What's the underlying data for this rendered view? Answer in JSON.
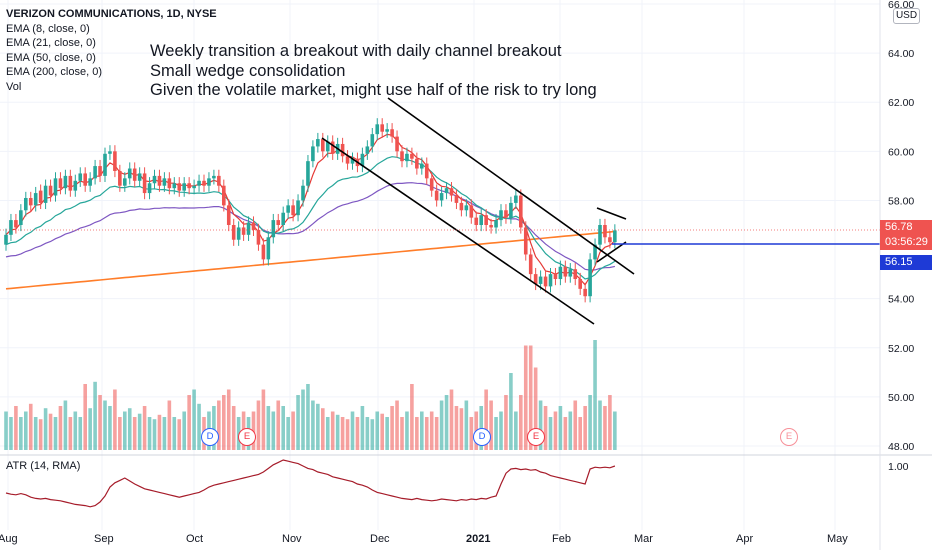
{
  "legend": {
    "title": "VERIZON COMMUNICATIONS, 1D, NYSE",
    "lines": [
      "EMA (8, close, 0)",
      "EMA (21, close, 0)",
      "EMA (50, close, 0)",
      "EMA (200, close, 0)",
      "Vol"
    ]
  },
  "annotation": {
    "lines": [
      "Weekly transition a breakout with daily channel breakout",
      "Small wedge consolidation",
      "Given the volatile market, might use half of the risk to try long"
    ]
  },
  "atr_label": "ATR (14, RMA)",
  "currency": "USD",
  "price_axis": {
    "ticks": [
      "66.00",
      "64.00",
      "62.00",
      "60.00",
      "58.00",
      "54.00",
      "52.00",
      "50.00",
      "48.00"
    ],
    "tick_values": [
      66,
      64,
      62,
      60,
      58,
      54,
      52,
      50,
      48
    ]
  },
  "atr_axis": {
    "ticks": [
      "1.00"
    ],
    "tick_values": [
      1.0
    ]
  },
  "tags": {
    "last_price": "56.78",
    "countdown": "03:56:29",
    "line_price": "56.15"
  },
  "colors": {
    "up": "#26a69a",
    "down": "#ef5350",
    "ema8": "#e53935",
    "ema21": "#26a69a",
    "ema50": "#7e57c2",
    "ema200": "#ff7d29",
    "atr": "#a61c2a",
    "hline": "#1e3ad6"
  },
  "time_axis": {
    "labels": [
      "Aug",
      "Sep",
      "Oct",
      "Nov",
      "Dec",
      "2021",
      "Feb",
      "Mar",
      "Apr",
      "May"
    ]
  },
  "earnings_markers": [
    "D",
    "E",
    "D",
    "E",
    "E"
  ],
  "chart_data": {
    "type": "candlestick",
    "title": "VERIZON COMMUNICATIONS, 1D, NYSE",
    "ylim": [
      47.8,
      66
    ],
    "x_ticks": [
      "Aug",
      "Sep",
      "Oct",
      "Nov",
      "Dec",
      "2021",
      "Feb",
      "Mar",
      "Apr",
      "May"
    ],
    "close": [
      56.6,
      57.2,
      56.9,
      57.6,
      58.1,
      57.8,
      58.3,
      57.9,
      58.6,
      58.2,
      58.9,
      58.5,
      59.0,
      58.4,
      58.8,
      59.1,
      58.6,
      58.9,
      59.4,
      59.0,
      59.9,
      60.0,
      59.2,
      58.6,
      58.9,
      59.3,
      58.8,
      59.1,
      58.3,
      58.7,
      59.0,
      58.6,
      58.9,
      58.5,
      58.7,
      58.4,
      58.7,
      58.5,
      58.6,
      58.8,
      58.6,
      58.9,
      59.0,
      58.6,
      57.8,
      57.0,
      56.4,
      56.9,
      56.6,
      57.1,
      56.8,
      56.2,
      55.6,
      56.5,
      57.2,
      57.0,
      57.5,
      57.8,
      57.4,
      58.0,
      58.6,
      59.6,
      60.2,
      60.5,
      60.0,
      60.4,
      59.9,
      60.3,
      59.8,
      59.5,
      59.7,
      59.4,
      59.9,
      60.2,
      60.7,
      61.1,
      60.8,
      60.9,
      60.6,
      60.0,
      59.6,
      59.9,
      59.7,
      59.3,
      59.5,
      58.9,
      58.4,
      58.0,
      58.3,
      58.5,
      58.2,
      57.9,
      57.6,
      57.8,
      57.3,
      57.0,
      57.4,
      57.0,
      56.9,
      57.2,
      57.6,
      57.3,
      57.9,
      58.2,
      56.9,
      55.8,
      55.0,
      54.6,
      54.9,
      54.5,
      55.0,
      54.8,
      55.3,
      54.9,
      55.2,
      54.8,
      54.4,
      54.1,
      55.6,
      56.2,
      57.0,
      56.5,
      56.3,
      56.78
    ],
    "open": [
      56.2,
      56.6,
      57.2,
      57.0,
      57.6,
      58.1,
      57.8,
      58.4,
      57.9,
      58.6,
      58.2,
      58.9,
      58.5,
      59.0,
      58.4,
      58.8,
      59.1,
      58.6,
      58.9,
      59.4,
      59.0,
      59.9,
      60.0,
      59.2,
      58.6,
      58.9,
      59.3,
      58.8,
      59.1,
      58.3,
      58.7,
      59.0,
      58.6,
      58.9,
      58.5,
      58.7,
      58.4,
      58.7,
      58.5,
      58.6,
      58.8,
      58.6,
      58.9,
      59.0,
      58.6,
      57.8,
      57.0,
      56.4,
      56.9,
      56.6,
      57.1,
      56.8,
      56.2,
      55.6,
      56.5,
      57.2,
      57.0,
      57.5,
      57.8,
      57.4,
      58.0,
      58.6,
      59.6,
      60.2,
      60.5,
      60.0,
      60.4,
      59.9,
      60.3,
      59.8,
      59.5,
      59.7,
      59.4,
      59.9,
      60.2,
      60.7,
      61.1,
      60.8,
      60.9,
      60.6,
      60.0,
      59.6,
      59.9,
      59.7,
      59.3,
      59.5,
      58.9,
      58.4,
      58.0,
      58.3,
      58.5,
      58.2,
      57.9,
      57.6,
      57.8,
      57.3,
      57.0,
      57.4,
      57.0,
      56.9,
      57.2,
      57.6,
      57.3,
      57.9,
      58.2,
      56.9,
      55.8,
      55.0,
      54.6,
      54.9,
      54.5,
      55.0,
      54.8,
      55.3,
      54.9,
      55.2,
      54.8,
      54.4,
      54.1,
      55.6,
      56.2,
      57.0,
      56.5,
      56.3
    ],
    "volume_relative": [
      0.35,
      0.3,
      0.4,
      0.3,
      0.35,
      0.42,
      0.3,
      0.28,
      0.38,
      0.33,
      0.3,
      0.4,
      0.45,
      0.3,
      0.35,
      0.3,
      0.6,
      0.38,
      0.62,
      0.5,
      0.45,
      0.4,
      0.55,
      0.3,
      0.35,
      0.38,
      0.3,
      0.33,
      0.4,
      0.3,
      0.28,
      0.32,
      0.3,
      0.45,
      0.3,
      0.28,
      0.35,
      0.5,
      0.55,
      0.42,
      0.3,
      0.35,
      0.4,
      0.45,
      0.5,
      0.55,
      0.4,
      0.3,
      0.35,
      0.3,
      0.35,
      0.45,
      0.55,
      0.4,
      0.35,
      0.45,
      0.4,
      0.3,
      0.35,
      0.5,
      0.55,
      0.6,
      0.45,
      0.42,
      0.38,
      0.3,
      0.35,
      0.32,
      0.3,
      0.28,
      0.35,
      0.3,
      0.4,
      0.3,
      0.28,
      0.35,
      0.33,
      0.3,
      0.4,
      0.45,
      0.3,
      0.35,
      0.6,
      0.3,
      0.35,
      0.3,
      0.35,
      0.3,
      0.45,
      0.5,
      0.55,
      0.4,
      0.38,
      0.45,
      0.3,
      0.35,
      0.4,
      0.55,
      0.45,
      0.3,
      0.35,
      0.5,
      0.7,
      0.35,
      0.5,
      0.95,
      0.95,
      0.75,
      0.45,
      0.4,
      0.3,
      0.35,
      0.4,
      0.3,
      0.35,
      0.45,
      0.3,
      0.4,
      0.5,
      1.0,
      0.45,
      0.4,
      0.5,
      0.35
    ],
    "atr_relative": [
      0.45,
      0.43,
      0.42,
      0.44,
      0.42,
      0.38,
      0.36,
      0.35,
      0.36,
      0.34,
      0.33,
      0.32,
      0.3,
      0.28,
      0.26,
      0.25,
      0.24,
      0.22,
      0.24,
      0.3,
      0.4,
      0.55,
      0.62,
      0.66,
      0.7,
      0.65,
      0.6,
      0.56,
      0.52,
      0.5,
      0.48,
      0.46,
      0.44,
      0.42,
      0.4,
      0.38,
      0.4,
      0.42,
      0.44,
      0.46,
      0.5,
      0.55,
      0.58,
      0.6,
      0.62,
      0.64,
      0.66,
      0.68,
      0.7,
      0.72,
      0.74,
      0.76,
      0.8,
      0.86,
      0.92,
      0.96,
      1.0,
      0.98,
      0.96,
      0.94,
      0.9,
      0.86,
      0.84,
      0.8,
      0.78,
      0.76,
      0.72,
      0.7,
      0.68,
      0.66,
      0.64,
      0.6,
      0.58,
      0.55,
      0.5,
      0.46,
      0.44,
      0.42,
      0.4,
      0.38,
      0.36,
      0.35,
      0.34,
      0.36,
      0.34,
      0.33,
      0.32,
      0.33,
      0.35,
      0.34,
      0.33,
      0.32,
      0.34,
      0.33,
      0.35,
      0.34,
      0.36,
      0.35,
      0.38,
      0.4,
      0.6,
      0.78,
      0.85,
      0.86,
      0.84,
      0.85,
      0.83,
      0.84,
      0.8,
      0.78,
      0.74,
      0.72,
      0.7,
      0.68,
      0.66,
      0.64,
      0.62,
      0.6,
      0.85,
      0.88,
      0.87,
      0.88,
      0.87,
      0.9
    ]
  }
}
